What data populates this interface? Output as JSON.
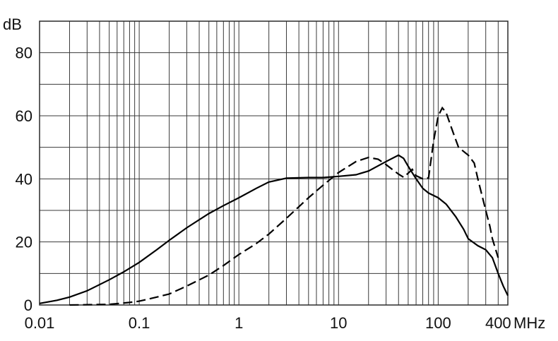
{
  "chart_data": {
    "type": "line",
    "title": "",
    "xlabel": "",
    "ylabel": "",
    "x_unit": "MHz",
    "y_unit": "dB",
    "x_scale": "log",
    "xlim": [
      0.01,
      500
    ],
    "ylim": [
      0,
      90
    ],
    "x_ticks": [
      {
        "value": 0.01,
        "label": "0.01"
      },
      {
        "value": 0.1,
        "label": "0.1"
      },
      {
        "value": 1,
        "label": "1"
      },
      {
        "value": 10,
        "label": "10"
      },
      {
        "value": 100,
        "label": "100"
      },
      {
        "value": 400,
        "label": "400"
      }
    ],
    "y_ticks": [
      {
        "value": 0,
        "label": "0"
      },
      {
        "value": 20,
        "label": "20"
      },
      {
        "value": 40,
        "label": "40"
      },
      {
        "value": 60,
        "label": "60"
      },
      {
        "value": 80,
        "label": "80"
      }
    ],
    "y_grid_step": 10,
    "grid": true,
    "legend": "none",
    "series": [
      {
        "style": "solid",
        "points": [
          [
            0.01,
            0.5
          ],
          [
            0.015,
            1.5
          ],
          [
            0.02,
            2.5
          ],
          [
            0.03,
            4.5
          ],
          [
            0.05,
            8
          ],
          [
            0.07,
            10.5
          ],
          [
            0.1,
            13.5
          ],
          [
            0.15,
            17.5
          ],
          [
            0.2,
            20.5
          ],
          [
            0.3,
            24.5
          ],
          [
            0.5,
            29
          ],
          [
            0.7,
            31.5
          ],
          [
            1,
            34
          ],
          [
            1.5,
            37
          ],
          [
            2,
            39
          ],
          [
            3,
            40.2
          ],
          [
            5,
            40.4
          ],
          [
            7,
            40.4
          ],
          [
            10,
            40.8
          ],
          [
            15,
            41.3
          ],
          [
            20,
            42.5
          ],
          [
            30,
            45.5
          ],
          [
            40,
            47.5
          ],
          [
            45,
            46.5
          ],
          [
            50,
            44
          ],
          [
            60,
            40
          ],
          [
            70,
            37
          ],
          [
            80,
            35.5
          ],
          [
            100,
            34
          ],
          [
            120,
            32
          ],
          [
            150,
            28
          ],
          [
            180,
            24
          ],
          [
            200,
            21
          ],
          [
            250,
            18.8
          ],
          [
            300,
            17.5
          ],
          [
            350,
            15
          ],
          [
            400,
            10
          ],
          [
            450,
            6
          ],
          [
            500,
            3
          ]
        ]
      },
      {
        "style": "dashed",
        "points": [
          [
            0.02,
            0
          ],
          [
            0.05,
            0.2
          ],
          [
            0.08,
            0.8
          ],
          [
            0.1,
            1.2
          ],
          [
            0.15,
            2.5
          ],
          [
            0.2,
            3.5
          ],
          [
            0.3,
            6
          ],
          [
            0.5,
            9.5
          ],
          [
            0.7,
            12.5
          ],
          [
            1,
            16
          ],
          [
            1.5,
            19.5
          ],
          [
            2,
            22.5
          ],
          [
            3,
            27.5
          ],
          [
            5,
            34
          ],
          [
            7,
            38
          ],
          [
            10,
            42
          ],
          [
            15,
            45.5
          ],
          [
            20,
            46.8
          ],
          [
            25,
            46.2
          ],
          [
            30,
            44.5
          ],
          [
            40,
            41.5
          ],
          [
            45,
            40.5
          ],
          [
            50,
            41.8
          ],
          [
            55,
            43
          ],
          [
            60,
            41
          ],
          [
            70,
            40
          ],
          [
            80,
            40.3
          ],
          [
            90,
            52
          ],
          [
            100,
            60
          ],
          [
            110,
            62.5
          ],
          [
            120,
            61
          ],
          [
            140,
            55
          ],
          [
            160,
            50
          ],
          [
            200,
            47.5
          ],
          [
            230,
            45
          ],
          [
            250,
            40
          ],
          [
            300,
            30
          ],
          [
            330,
            25
          ],
          [
            350,
            21
          ],
          [
            400,
            15
          ]
        ]
      }
    ]
  }
}
